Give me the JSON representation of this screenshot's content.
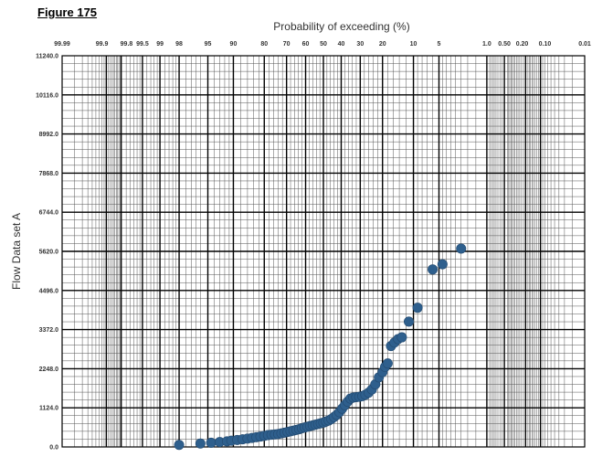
{
  "figure_label": "Figure 175",
  "chart_data": {
    "type": "scatter",
    "title": "",
    "xlabel": "Probability of exceeding (%)",
    "ylabel": "Flow Data set A",
    "x_scale": "normal-probability",
    "x_direction": "decreasing",
    "xlim": [
      99.99,
      0.01
    ],
    "ylim": [
      0,
      11240
    ],
    "grid": true,
    "legend": "none",
    "marker_color": "#2e5f8d",
    "x_ticks": [
      {
        "value": 99.99,
        "label": "99.99"
      },
      {
        "value": 99.9,
        "label": "99.9"
      },
      {
        "value": 99.8,
        "label": "99.8"
      },
      {
        "value": 99.5,
        "label": "99.5"
      },
      {
        "value": 99,
        "label": "99"
      },
      {
        "value": 98,
        "label": "98"
      },
      {
        "value": 95,
        "label": "95"
      },
      {
        "value": 90,
        "label": "90"
      },
      {
        "value": 80,
        "label": "80"
      },
      {
        "value": 70,
        "label": "70"
      },
      {
        "value": 60,
        "label": "60"
      },
      {
        "value": 50,
        "label": "50"
      },
      {
        "value": 40,
        "label": "40"
      },
      {
        "value": 30,
        "label": "30"
      },
      {
        "value": 20,
        "label": "20"
      },
      {
        "value": 10,
        "label": "10"
      },
      {
        "value": 5,
        "label": "5"
      },
      {
        "value": 1,
        "label": "1.0"
      },
      {
        "value": 0.5,
        "label": "0.50"
      },
      {
        "value": 0.2,
        "label": "0.20"
      },
      {
        "value": 0.1,
        "label": "0.10"
      },
      {
        "value": 0.01,
        "label": "0.01"
      }
    ],
    "y_ticks": [
      {
        "value": 0,
        "label": "0.0"
      },
      {
        "value": 1124,
        "label": "1124.0"
      },
      {
        "value": 2248,
        "label": "2248.0"
      },
      {
        "value": 3372,
        "label": "3372.0"
      },
      {
        "value": 4496,
        "label": "4496.0"
      },
      {
        "value": 5620,
        "label": "5620.0"
      },
      {
        "value": 6744,
        "label": "6744.0"
      },
      {
        "value": 7868,
        "label": "7868.0"
      },
      {
        "value": 8992,
        "label": "8992.0"
      },
      {
        "value": 10116,
        "label": "10116.0"
      },
      {
        "value": 11240,
        "label": "11240.0"
      }
    ],
    "points": [
      {
        "x": 98.0,
        "y": 60
      },
      {
        "x": 96.0,
        "y": 100
      },
      {
        "x": 94.5,
        "y": 120
      },
      {
        "x": 93.0,
        "y": 140
      },
      {
        "x": 91.5,
        "y": 160
      },
      {
        "x": 90.5,
        "y": 180
      },
      {
        "x": 89.0,
        "y": 200
      },
      {
        "x": 87.5,
        "y": 220
      },
      {
        "x": 86.0,
        "y": 240
      },
      {
        "x": 84.5,
        "y": 260
      },
      {
        "x": 83.0,
        "y": 280
      },
      {
        "x": 81.5,
        "y": 300
      },
      {
        "x": 80.0,
        "y": 320
      },
      {
        "x": 78.5,
        "y": 340
      },
      {
        "x": 77.0,
        "y": 350
      },
      {
        "x": 75.5,
        "y": 360
      },
      {
        "x": 74.0,
        "y": 370
      },
      {
        "x": 72.5,
        "y": 390
      },
      {
        "x": 71.0,
        "y": 410
      },
      {
        "x": 69.5,
        "y": 430
      },
      {
        "x": 68.0,
        "y": 450
      },
      {
        "x": 66.5,
        "y": 470
      },
      {
        "x": 65.0,
        "y": 490
      },
      {
        "x": 63.5,
        "y": 510
      },
      {
        "x": 62.0,
        "y": 540
      },
      {
        "x": 60.5,
        "y": 560
      },
      {
        "x": 59.0,
        "y": 580
      },
      {
        "x": 57.5,
        "y": 600
      },
      {
        "x": 56.0,
        "y": 620
      },
      {
        "x": 54.5,
        "y": 640
      },
      {
        "x": 53.0,
        "y": 660
      },
      {
        "x": 51.5,
        "y": 680
      },
      {
        "x": 50.0,
        "y": 700
      },
      {
        "x": 48.5,
        "y": 730
      },
      {
        "x": 47.0,
        "y": 760
      },
      {
        "x": 45.5,
        "y": 800
      },
      {
        "x": 44.0,
        "y": 860
      },
      {
        "x": 42.5,
        "y": 920
      },
      {
        "x": 41.0,
        "y": 1000
      },
      {
        "x": 39.5,
        "y": 1100
      },
      {
        "x": 38.0,
        "y": 1200
      },
      {
        "x": 36.5,
        "y": 1300
      },
      {
        "x": 35.0,
        "y": 1390
      },
      {
        "x": 33.5,
        "y": 1420
      },
      {
        "x": 32.0,
        "y": 1430
      },
      {
        "x": 30.5,
        "y": 1440
      },
      {
        "x": 29.0,
        "y": 1460
      },
      {
        "x": 27.5,
        "y": 1500
      },
      {
        "x": 26.0,
        "y": 1560
      },
      {
        "x": 24.5,
        "y": 1650
      },
      {
        "x": 23.0,
        "y": 1800
      },
      {
        "x": 21.5,
        "y": 2000
      },
      {
        "x": 20.0,
        "y": 2150
      },
      {
        "x": 19.0,
        "y": 2300
      },
      {
        "x": 18.0,
        "y": 2400
      },
      {
        "x": 16.8,
        "y": 2900
      },
      {
        "x": 15.6,
        "y": 3000
      },
      {
        "x": 14.4,
        "y": 3100
      },
      {
        "x": 13.2,
        "y": 3150
      },
      {
        "x": 11.2,
        "y": 3600
      },
      {
        "x": 9.0,
        "y": 4000
      },
      {
        "x": 6.0,
        "y": 5100
      },
      {
        "x": 4.5,
        "y": 5250
      },
      {
        "x": 2.5,
        "y": 5700
      }
    ]
  }
}
